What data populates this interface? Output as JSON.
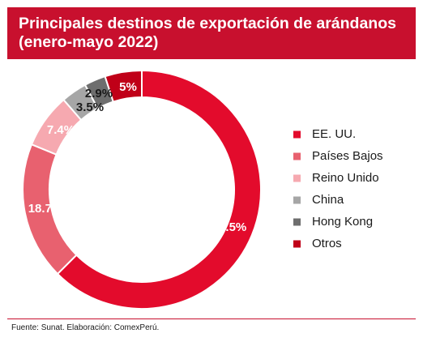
{
  "chart_data": {
    "type": "pie",
    "style": "donut",
    "title_line1": "Principales destinos de exportación de arándanos",
    "title_line2": "(enero-mayo 2022)",
    "categories": [
      "EE. UU.",
      "Países Bajos",
      "Reino Unido",
      "China",
      "Hong Kong",
      "Otros"
    ],
    "values": [
      62.5,
      18.7,
      7.4,
      3.5,
      2.9,
      5
    ],
    "value_labels": [
      "62.5%",
      "18.7%",
      "7.4%",
      "3.5%",
      "2.9%",
      "5%"
    ],
    "colors": [
      "#e30b2c",
      "#e8616f",
      "#f6a9b0",
      "#a6a6a6",
      "#6e6e6e",
      "#c00018"
    ],
    "label_colors": [
      "#ffffff",
      "#ffffff",
      "#ffffff",
      "#1a1a1a",
      "#1a1a1a",
      "#ffffff"
    ],
    "legend_position": "right"
  },
  "footer": {
    "source": "Fuente: Sunat. Elaboración: ComexPerú."
  }
}
